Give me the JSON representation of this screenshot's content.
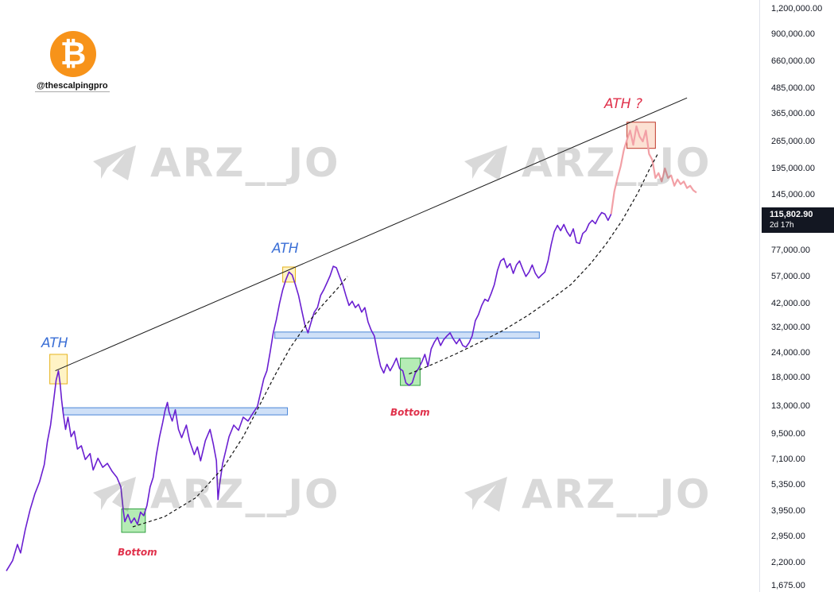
{
  "branding": {
    "logo_symbol": "₿",
    "handle": "@thescalpingpro",
    "watermark_text": "ARZ__JO",
    "logo_color": "#f7931a"
  },
  "price_tag": {
    "price": "115,802.90",
    "countdown": "2d 17h"
  },
  "annotations": {
    "ath_1": "ATH",
    "ath_2": "ATH",
    "ath_q": "ATH ?",
    "bottom_1": "Bottom",
    "bottom_2": "Bottom"
  },
  "chart_data": {
    "type": "line",
    "scale": "log",
    "ylim": [
      1675,
      1200000
    ],
    "y_ticks": [
      "1,200,000.00",
      "900,000.00",
      "660,000.00",
      "485,000.00",
      "365,000.00",
      "265,000.00",
      "195,000.00",
      "145,000.00",
      "77,000.00",
      "57,000.00",
      "42,000.00",
      "32,000.00",
      "24,000.00",
      "18,000.00",
      "13,000.00",
      "9,500.00",
      "7,100.00",
      "5,350.00",
      "3,950.00",
      "2,950.00",
      "2,200.00",
      "1,675.00"
    ],
    "y_tick_values": [
      1200000,
      900000,
      660000,
      485000,
      365000,
      265000,
      195000,
      145000,
      77000,
      57000,
      42000,
      32000,
      24000,
      18000,
      13000,
      9500,
      7100,
      5350,
      3950,
      2950,
      2200,
      1675
    ],
    "x_range": [
      0,
      1000
    ],
    "series": [
      {
        "kind": "price",
        "color": "#6a1fd1",
        "points": [
          [
            0,
            2000
          ],
          [
            8,
            2250
          ],
          [
            14,
            2700
          ],
          [
            18,
            2450
          ],
          [
            24,
            3200
          ],
          [
            30,
            4000
          ],
          [
            36,
            4800
          ],
          [
            42,
            5500
          ],
          [
            48,
            6700
          ],
          [
            52,
            8700
          ],
          [
            56,
            10500
          ],
          [
            60,
            14000
          ],
          [
            63,
            17500
          ],
          [
            66,
            19500
          ],
          [
            68,
            17000
          ],
          [
            70,
            14000
          ],
          [
            72,
            12000
          ],
          [
            75,
            10000
          ],
          [
            78,
            11500
          ],
          [
            82,
            9200
          ],
          [
            86,
            9800
          ],
          [
            90,
            8000
          ],
          [
            95,
            8300
          ],
          [
            100,
            7100
          ],
          [
            106,
            7600
          ],
          [
            110,
            6300
          ],
          [
            116,
            7200
          ],
          [
            122,
            6500
          ],
          [
            128,
            6800
          ],
          [
            134,
            6200
          ],
          [
            140,
            5800
          ],
          [
            145,
            5200
          ],
          [
            148,
            4000
          ],
          [
            150,
            3500
          ],
          [
            154,
            3800
          ],
          [
            158,
            3450
          ],
          [
            162,
            3650
          ],
          [
            166,
            3400
          ],
          [
            170,
            3900
          ],
          [
            174,
            3750
          ],
          [
            178,
            4200
          ],
          [
            182,
            5200
          ],
          [
            186,
            5800
          ],
          [
            190,
            7500
          ],
          [
            194,
            9200
          ],
          [
            198,
            10800
          ],
          [
            201,
            12400
          ],
          [
            204,
            13600
          ],
          [
            206,
            12200
          ],
          [
            210,
            11000
          ],
          [
            214,
            12500
          ],
          [
            218,
            10000
          ],
          [
            222,
            9100
          ],
          [
            228,
            10500
          ],
          [
            232,
            8800
          ],
          [
            238,
            7500
          ],
          [
            242,
            8200
          ],
          [
            246,
            7000
          ],
          [
            252,
            8800
          ],
          [
            258,
            10000
          ],
          [
            262,
            8500
          ],
          [
            266,
            7000
          ],
          [
            268,
            4500
          ],
          [
            270,
            5300
          ],
          [
            274,
            6800
          ],
          [
            278,
            7900
          ],
          [
            282,
            9200
          ],
          [
            288,
            10500
          ],
          [
            294,
            9900
          ],
          [
            300,
            11500
          ],
          [
            306,
            11000
          ],
          [
            312,
            12000
          ],
          [
            318,
            13000
          ],
          [
            322,
            15200
          ],
          [
            326,
            17800
          ],
          [
            330,
            19500
          ],
          [
            334,
            24000
          ],
          [
            338,
            30000
          ],
          [
            342,
            35000
          ],
          [
            346,
            42000
          ],
          [
            350,
            49000
          ],
          [
            354,
            55000
          ],
          [
            358,
            60000
          ],
          [
            362,
            58000
          ],
          [
            366,
            52000
          ],
          [
            370,
            46000
          ],
          [
            374,
            39000
          ],
          [
            378,
            33000
          ],
          [
            382,
            30000
          ],
          [
            386,
            34000
          ],
          [
            390,
            38000
          ],
          [
            394,
            40000
          ],
          [
            398,
            46000
          ],
          [
            402,
            49000
          ],
          [
            406,
            53000
          ],
          [
            410,
            57500
          ],
          [
            414,
            64000
          ],
          [
            418,
            63000
          ],
          [
            422,
            57000
          ],
          [
            426,
            52000
          ],
          [
            430,
            46000
          ],
          [
            434,
            41000
          ],
          [
            438,
            43000
          ],
          [
            442,
            40000
          ],
          [
            446,
            41500
          ],
          [
            450,
            38000
          ],
          [
            454,
            40000
          ],
          [
            458,
            34000
          ],
          [
            462,
            31000
          ],
          [
            466,
            29000
          ],
          [
            470,
            24000
          ],
          [
            474,
            20500
          ],
          [
            478,
            19000
          ],
          [
            482,
            21000
          ],
          [
            486,
            19500
          ],
          [
            490,
            20800
          ],
          [
            494,
            22500
          ],
          [
            498,
            20000
          ],
          [
            502,
            19500
          ],
          [
            506,
            17000
          ],
          [
            510,
            16500
          ],
          [
            514,
            17000
          ],
          [
            518,
            19000
          ],
          [
            522,
            20000
          ],
          [
            526,
            21500
          ],
          [
            530,
            23500
          ],
          [
            534,
            20500
          ],
          [
            538,
            25000
          ],
          [
            542,
            27000
          ],
          [
            546,
            28500
          ],
          [
            550,
            26000
          ],
          [
            554,
            27800
          ],
          [
            558,
            29000
          ],
          [
            562,
            30000
          ],
          [
            566,
            28000
          ],
          [
            570,
            26500
          ],
          [
            574,
            28000
          ],
          [
            578,
            26000
          ],
          [
            582,
            25500
          ],
          [
            586,
            26800
          ],
          [
            590,
            29000
          ],
          [
            594,
            34500
          ],
          [
            598,
            37000
          ],
          [
            602,
            41000
          ],
          [
            606,
            44000
          ],
          [
            610,
            43000
          ],
          [
            614,
            47000
          ],
          [
            618,
            52000
          ],
          [
            622,
            61000
          ],
          [
            626,
            68000
          ],
          [
            630,
            70000
          ],
          [
            634,
            63000
          ],
          [
            638,
            66000
          ],
          [
            642,
            59000
          ],
          [
            646,
            65000
          ],
          [
            650,
            68000
          ],
          [
            654,
            62000
          ],
          [
            658,
            57000
          ],
          [
            662,
            60000
          ],
          [
            666,
            65000
          ],
          [
            670,
            59000
          ],
          [
            674,
            56000
          ],
          [
            678,
            58000
          ],
          [
            682,
            60000
          ],
          [
            686,
            68000
          ],
          [
            690,
            82000
          ],
          [
            694,
            95000
          ],
          [
            698,
            102000
          ],
          [
            702,
            96000
          ],
          [
            706,
            103000
          ],
          [
            710,
            95000
          ],
          [
            714,
            90000
          ],
          [
            718,
            98000
          ],
          [
            722,
            84000
          ],
          [
            726,
            83000
          ],
          [
            730,
            93000
          ],
          [
            734,
            96000
          ],
          [
            738,
            104000
          ],
          [
            742,
            108000
          ],
          [
            746,
            104000
          ],
          [
            750,
            112000
          ],
          [
            754,
            118000
          ],
          [
            758,
            116000
          ],
          [
            762,
            108000
          ],
          [
            766,
            116000
          ]
        ]
      },
      {
        "kind": "projection",
        "color": "#f2a0a6",
        "points": [
          [
            766,
            116000
          ],
          [
            770,
            150000
          ],
          [
            774,
            175000
          ],
          [
            778,
            200000
          ],
          [
            782,
            240000
          ],
          [
            786,
            270000
          ],
          [
            790,
            300000
          ],
          [
            794,
            255000
          ],
          [
            798,
            315000
          ],
          [
            802,
            280000
          ],
          [
            806,
            265000
          ],
          [
            810,
            300000
          ],
          [
            814,
            230000
          ],
          [
            818,
            215000
          ],
          [
            822,
            175000
          ],
          [
            826,
            185000
          ],
          [
            830,
            168000
          ],
          [
            834,
            195000
          ],
          [
            838,
            175000
          ],
          [
            842,
            180000
          ],
          [
            846,
            160000
          ],
          [
            850,
            172000
          ],
          [
            854,
            163000
          ],
          [
            858,
            168000
          ],
          [
            862,
            156000
          ],
          [
            866,
            160000
          ],
          [
            870,
            152000
          ],
          [
            874,
            148000
          ]
        ]
      },
      {
        "kind": "trendline",
        "color": "#1a1a1a",
        "points": [
          [
            62,
            19500
          ],
          [
            862,
            435000
          ]
        ]
      }
    ],
    "curves": [
      {
        "points": [
          [
            160,
            3300
          ],
          [
            200,
            3700
          ],
          [
            240,
            4600
          ],
          [
            275,
            6500
          ],
          [
            300,
            9200
          ],
          [
            320,
            13000
          ],
          [
            340,
            18500
          ],
          [
            360,
            25500
          ],
          [
            380,
            33000
          ],
          [
            400,
            41000
          ],
          [
            420,
            50000
          ],
          [
            432,
            57000
          ]
        ]
      },
      {
        "points": [
          [
            510,
            18800
          ],
          [
            540,
            21000
          ],
          [
            570,
            23700
          ],
          [
            600,
            27000
          ],
          [
            630,
            31000
          ],
          [
            660,
            36500
          ],
          [
            690,
            44000
          ],
          [
            715,
            52000
          ],
          [
            740,
            66000
          ],
          [
            760,
            83000
          ],
          [
            780,
            108000
          ],
          [
            800,
            148000
          ],
          [
            815,
            195000
          ],
          [
            825,
            230000
          ]
        ]
      }
    ],
    "zones": [
      {
        "label": "ath1",
        "color": "yellow",
        "x": [
          55,
          77
        ],
        "y": [
          16800,
          23500
        ]
      },
      {
        "label": "ath2",
        "color": "yellow",
        "x": [
          350,
          366
        ],
        "y": [
          53500,
          63500
        ]
      },
      {
        "label": "athq",
        "color": "orange",
        "x": [
          786,
          822
        ],
        "y": [
          245000,
          330000
        ]
      },
      {
        "label": "bottom1",
        "color": "green",
        "x": [
          146,
          176
        ],
        "y": [
          3100,
          4050
        ]
      },
      {
        "label": "bottom2",
        "color": "green",
        "x": [
          499,
          524
        ],
        "y": [
          16500,
          22500
        ]
      }
    ],
    "levels": [
      {
        "x": [
          72,
          356
        ],
        "y": [
          11800,
          12800
        ]
      },
      {
        "x": [
          340,
          675
        ],
        "y": [
          28200,
          30300
        ]
      }
    ]
  }
}
